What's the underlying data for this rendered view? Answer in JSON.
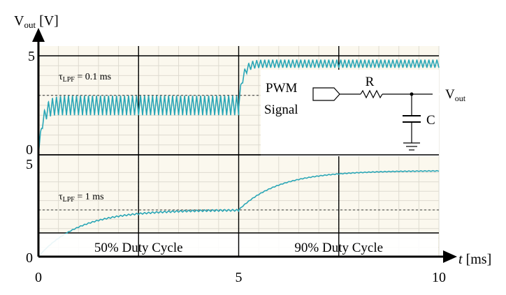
{
  "chart_data": [
    {
      "type": "line",
      "panel": "top",
      "ylabel_main": "V",
      "ylabel_sub": "out",
      "ylabel_unit": " [V]",
      "ylim": [
        0,
        5
      ],
      "xlim": [
        0,
        10
      ],
      "y_ticks": [
        "0",
        "5"
      ],
      "dashed_level": 3.0,
      "annotation": {
        "main": "τ",
        "sub": "LPF",
        "rest": " = 0.1 ms"
      },
      "series": [
        {
          "segments": [
            {
              "x0": 0.0,
              "x1": 5.0,
              "start_mean": 0.0,
              "settled_mean": 2.5,
              "ripple_amp": 0.5,
              "tau_ms": 0.1,
              "period_ms": 0.1
            },
            {
              "x0": 5.0,
              "x1": 10.0,
              "start_mean": 2.5,
              "settled_mean": 4.6,
              "ripple_amp": 0.2,
              "tau_ms": 0.1,
              "period_ms": 0.1
            }
          ]
        }
      ]
    },
    {
      "type": "line",
      "panel": "bottom",
      "ylim": [
        0,
        5
      ],
      "xlim": [
        0,
        10
      ],
      "y_ticks": [
        "0",
        "5"
      ],
      "x_ticks": [
        "0",
        "5",
        "10"
      ],
      "xlabel_main": "t",
      "xlabel_unit": " [ms]",
      "dashed_level": 2.5,
      "annotation": {
        "main": "τ",
        "sub": "LPF",
        "rest": " = 1 ms"
      },
      "region_labels": [
        "50% Duty Cycle",
        "90% Duty Cycle"
      ],
      "series": [
        {
          "segments": [
            {
              "x0": 0.0,
              "x1": 5.0,
              "start_mean": 0.0,
              "settled_mean": 2.5,
              "ripple_amp": 0.05,
              "tau_ms": 1.0,
              "period_ms": 0.1
            },
            {
              "x0": 5.0,
              "x1": 10.0,
              "start_mean": 2.5,
              "settled_mean": 4.6,
              "ripple_amp": 0.02,
              "tau_ms": 1.0,
              "period_ms": 0.1
            }
          ]
        }
      ]
    }
  ],
  "circuit": {
    "input_label_line1": "PWM",
    "input_label_line2": "Signal",
    "resistor_label": "R",
    "capacitor_label": "C",
    "output_main": "V",
    "output_sub": "out"
  },
  "colors": {
    "signal": "#2aa6b6",
    "background": "#fbf8ee",
    "grid": "#dedbd0",
    "axis": "#000000"
  }
}
